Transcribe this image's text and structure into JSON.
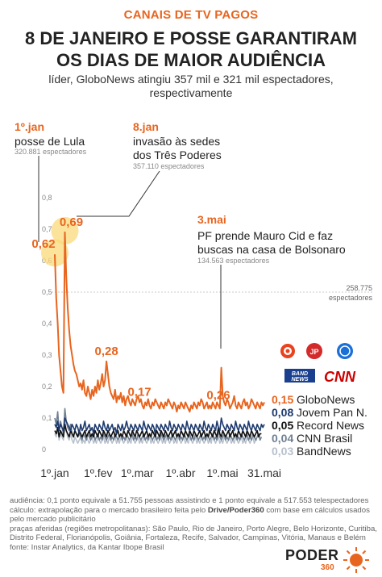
{
  "header": {
    "kicker": "CANAIS DE TV PAGOS",
    "title_line1": "8 DE JANEIRO E POSSE GARANTIRAM",
    "title_line2": "OS DIAS DE MAIOR AUDIÊNCIA",
    "subtitle_line1": "líder, GloboNews atingiu 357 mil e 321 mil espectadores,",
    "subtitle_line2": "respectivamente"
  },
  "annotations": {
    "posse": {
      "date": "1º.jan",
      "label": "posse de Lula",
      "viewers": "320.881 espectadores"
    },
    "jan8": {
      "date": "8.jan",
      "label_line1": "invasão às sedes",
      "label_line2": "dos Três Poderes",
      "viewers": "357.110 espectadores"
    },
    "mai3": {
      "date": "3.mai",
      "label_line1": "PF prende Mauro Cid e faz",
      "label_line2": "buscas na casa de Bolsonaro",
      "viewers": "134.563 espectadores"
    },
    "reference": {
      "value": "258.775",
      "unit": "espectadores"
    }
  },
  "chart_data": {
    "type": "line",
    "ylim": [
      0,
      0.8
    ],
    "yticks": [
      "0",
      "0,1",
      "0,2",
      "0,3",
      "0,4",
      "0,5",
      "0,6",
      "0,7",
      "0,8"
    ],
    "xtick_labels": [
      "1º.jan",
      "1º.fev",
      "1º.mar",
      "1º.abr",
      "1º.mai",
      "31.mai"
    ],
    "peak_labels": [
      "0,62",
      "0,69",
      "0,28",
      "0,17",
      "0,26"
    ],
    "reference_line_y": 0.5,
    "series": [
      {
        "name": "GloboNews",
        "last_value": "0,15",
        "color": "#e8651f",
        "values": [
          0.62,
          0.48,
          0.4,
          0.3,
          0.25,
          0.2,
          0.18,
          0.69,
          0.55,
          0.45,
          0.38,
          0.33,
          0.3,
          0.27,
          0.25,
          0.24,
          0.22,
          0.2,
          0.21,
          0.19,
          0.22,
          0.18,
          0.17,
          0.2,
          0.18,
          0.16,
          0.19,
          0.17,
          0.2,
          0.18,
          0.22,
          0.19,
          0.21,
          0.24,
          0.2,
          0.22,
          0.28,
          0.24,
          0.2,
          0.18,
          0.17,
          0.16,
          0.19,
          0.15,
          0.17,
          0.16,
          0.18,
          0.15,
          0.17,
          0.14,
          0.16,
          0.17,
          0.15,
          0.14,
          0.16,
          0.15,
          0.14,
          0.16,
          0.17,
          0.15,
          0.16,
          0.14,
          0.13,
          0.15,
          0.14,
          0.16,
          0.14,
          0.13,
          0.15,
          0.14,
          0.16,
          0.15,
          0.14,
          0.13,
          0.15,
          0.14,
          0.13,
          0.15,
          0.14,
          0.16,
          0.15,
          0.14,
          0.13,
          0.15,
          0.14,
          0.12,
          0.14,
          0.13,
          0.15,
          0.14,
          0.13,
          0.15,
          0.14,
          0.13,
          0.12,
          0.14,
          0.13,
          0.15,
          0.14,
          0.13,
          0.15,
          0.14,
          0.16,
          0.15,
          0.13,
          0.14,
          0.15,
          0.13,
          0.14,
          0.13,
          0.15,
          0.14,
          0.13,
          0.15,
          0.14,
          0.13,
          0.26,
          0.17,
          0.15,
          0.14,
          0.16,
          0.15,
          0.13,
          0.14,
          0.15,
          0.17,
          0.14,
          0.13,
          0.15,
          0.14,
          0.13,
          0.15,
          0.16,
          0.14,
          0.15,
          0.13,
          0.14,
          0.16,
          0.15,
          0.14,
          0.13,
          0.15,
          0.14,
          0.13,
          0.15,
          0.14,
          0.15
        ]
      },
      {
        "name": "Jovem Pan N.",
        "last_value": "0,08",
        "color": "#1e3a6e",
        "values": [
          0.08,
          0.07,
          0.09,
          0.06,
          0.08,
          0.07,
          0.06,
          0.1,
          0.09,
          0.08,
          0.07,
          0.06,
          0.08,
          0.07,
          0.06,
          0.08,
          0.07,
          0.05,
          0.08,
          0.06,
          0.07,
          0.09,
          0.06,
          0.07,
          0.08,
          0.06,
          0.07,
          0.05,
          0.08,
          0.07,
          0.06,
          0.08,
          0.07,
          0.06,
          0.09,
          0.07,
          0.06,
          0.08,
          0.06,
          0.07,
          0.08,
          0.06,
          0.07,
          0.05,
          0.08,
          0.07,
          0.06,
          0.08,
          0.06,
          0.07,
          0.09,
          0.07,
          0.06,
          0.08,
          0.07,
          0.06,
          0.08,
          0.07,
          0.06,
          0.08,
          0.07,
          0.06,
          0.09,
          0.07,
          0.06,
          0.08,
          0.07,
          0.06,
          0.08,
          0.07,
          0.05,
          0.08,
          0.07,
          0.06,
          0.08,
          0.07,
          0.06,
          0.08,
          0.07,
          0.06,
          0.09,
          0.07,
          0.06,
          0.08,
          0.07,
          0.06,
          0.08,
          0.07,
          0.06,
          0.08,
          0.07,
          0.06,
          0.09,
          0.07,
          0.06,
          0.08,
          0.07,
          0.06,
          0.08,
          0.07,
          0.06,
          0.08,
          0.07,
          0.06,
          0.09,
          0.07,
          0.06,
          0.08,
          0.07,
          0.06,
          0.08,
          0.07,
          0.06,
          0.09,
          0.07,
          0.06,
          0.1,
          0.08,
          0.07,
          0.06,
          0.08,
          0.07,
          0.06,
          0.08,
          0.07,
          0.06,
          0.09,
          0.07,
          0.06,
          0.08,
          0.07,
          0.06,
          0.08,
          0.07,
          0.06,
          0.09,
          0.07,
          0.06,
          0.08,
          0.07,
          0.06,
          0.08,
          0.07,
          0.06,
          0.08,
          0.07,
          0.08
        ]
      },
      {
        "name": "Record News",
        "last_value": "0,05",
        "color": "#111111",
        "values": [
          0.06,
          0.05,
          0.07,
          0.04,
          0.06,
          0.05,
          0.04,
          0.08,
          0.06,
          0.05,
          0.04,
          0.06,
          0.05,
          0.04,
          0.06,
          0.05,
          0.04,
          0.06,
          0.05,
          0.04,
          0.05,
          0.06,
          0.04,
          0.05,
          0.06,
          0.04,
          0.05,
          0.04,
          0.06,
          0.05,
          0.04,
          0.06,
          0.05,
          0.04,
          0.06,
          0.05,
          0.04,
          0.06,
          0.05,
          0.04,
          0.05,
          0.06,
          0.04,
          0.05,
          0.06,
          0.04,
          0.05,
          0.04,
          0.06,
          0.05,
          0.04,
          0.06,
          0.05,
          0.04,
          0.06,
          0.05,
          0.04,
          0.06,
          0.05,
          0.04,
          0.05,
          0.06,
          0.04,
          0.05,
          0.06,
          0.04,
          0.05,
          0.04,
          0.06,
          0.05,
          0.04,
          0.06,
          0.05,
          0.04,
          0.06,
          0.05,
          0.04,
          0.06,
          0.05,
          0.04,
          0.05,
          0.06,
          0.04,
          0.05,
          0.06,
          0.04,
          0.05,
          0.04,
          0.06,
          0.05,
          0.04,
          0.06,
          0.05,
          0.04,
          0.06,
          0.05,
          0.04,
          0.06,
          0.05,
          0.04,
          0.05,
          0.06,
          0.04,
          0.05,
          0.06,
          0.04,
          0.05,
          0.04,
          0.06,
          0.05,
          0.04,
          0.06,
          0.05,
          0.04,
          0.07,
          0.05,
          0.04,
          0.06,
          0.05,
          0.04,
          0.05,
          0.06,
          0.04,
          0.05,
          0.06,
          0.04,
          0.05,
          0.04,
          0.06,
          0.05,
          0.04,
          0.06,
          0.05,
          0.04,
          0.06,
          0.05,
          0.04,
          0.06,
          0.05,
          0.04,
          0.05,
          0.06,
          0.04,
          0.05,
          0.05
        ]
      },
      {
        "name": "CNN Brasil",
        "last_value": "0,04",
        "color": "#6f7f93",
        "values": [
          0.1,
          0.08,
          0.12,
          0.06,
          0.09,
          0.07,
          0.05,
          0.13,
          0.09,
          0.07,
          0.06,
          0.08,
          0.05,
          0.04,
          0.06,
          0.05,
          0.04,
          0.05,
          0.04,
          0.03,
          0.05,
          0.04,
          0.03,
          0.05,
          0.04,
          0.03,
          0.04,
          0.05,
          0.03,
          0.04,
          0.05,
          0.03,
          0.04,
          0.03,
          0.05,
          0.04,
          0.03,
          0.04,
          0.05,
          0.03,
          0.04,
          0.03,
          0.05,
          0.04,
          0.03,
          0.04,
          0.05,
          0.03,
          0.04,
          0.03,
          0.05,
          0.04,
          0.03,
          0.04,
          0.05,
          0.03,
          0.04,
          0.03,
          0.05,
          0.04,
          0.03,
          0.04,
          0.05,
          0.03,
          0.04,
          0.03,
          0.05,
          0.04,
          0.03,
          0.04,
          0.05,
          0.03,
          0.04,
          0.03,
          0.05,
          0.04,
          0.03,
          0.04,
          0.05,
          0.03,
          0.04,
          0.03,
          0.05,
          0.04,
          0.03,
          0.04,
          0.05,
          0.03,
          0.04,
          0.03,
          0.05,
          0.04,
          0.03,
          0.04,
          0.05,
          0.03,
          0.04,
          0.03,
          0.05,
          0.04,
          0.03,
          0.04,
          0.05,
          0.03,
          0.04,
          0.03,
          0.05,
          0.04,
          0.03,
          0.04,
          0.05,
          0.03,
          0.04,
          0.03,
          0.06,
          0.04,
          0.03,
          0.04,
          0.05,
          0.03,
          0.04,
          0.03,
          0.05,
          0.04,
          0.03,
          0.04,
          0.05,
          0.03,
          0.04,
          0.03,
          0.05,
          0.04,
          0.03,
          0.04,
          0.05,
          0.03,
          0.04,
          0.03,
          0.05,
          0.04,
          0.03,
          0.04,
          0.05,
          0.03,
          0.04
        ]
      },
      {
        "name": "BandNews",
        "last_value": "0,03",
        "color": "#b8c1cc",
        "values": [
          0.05,
          0.04,
          0.07,
          0.03,
          0.05,
          0.04,
          0.03,
          0.09,
          0.06,
          0.04,
          0.03,
          0.05,
          0.03,
          0.02,
          0.04,
          0.03,
          0.02,
          0.03,
          0.04,
          0.02,
          0.03,
          0.02,
          0.04,
          0.03,
          0.02,
          0.03,
          0.04,
          0.02,
          0.03,
          0.02,
          0.04,
          0.03,
          0.02,
          0.03,
          0.04,
          0.02,
          0.03,
          0.02,
          0.04,
          0.03,
          0.02,
          0.03,
          0.04,
          0.02,
          0.03,
          0.02,
          0.04,
          0.03,
          0.02,
          0.03,
          0.04,
          0.02,
          0.03,
          0.02,
          0.04,
          0.03,
          0.02,
          0.03,
          0.04,
          0.02,
          0.03,
          0.02,
          0.04,
          0.03,
          0.02,
          0.03,
          0.04,
          0.02,
          0.03,
          0.02,
          0.04,
          0.03,
          0.02,
          0.03,
          0.04,
          0.02,
          0.03,
          0.02,
          0.04,
          0.03,
          0.02,
          0.03,
          0.04,
          0.02,
          0.03,
          0.02,
          0.04,
          0.03,
          0.02,
          0.03,
          0.04,
          0.02,
          0.03,
          0.02,
          0.04,
          0.03,
          0.02,
          0.03,
          0.04,
          0.02,
          0.03,
          0.02,
          0.04,
          0.03,
          0.02,
          0.03,
          0.04,
          0.02,
          0.03,
          0.02,
          0.05,
          0.03,
          0.02,
          0.03,
          0.04,
          0.02,
          0.03,
          0.02,
          0.04,
          0.03,
          0.02,
          0.03,
          0.04,
          0.02,
          0.03,
          0.02,
          0.04,
          0.03,
          0.02,
          0.03,
          0.04,
          0.02,
          0.03,
          0.02,
          0.04,
          0.03,
          0.02,
          0.03,
          0.04,
          0.02,
          0.03,
          0.03
        ]
      }
    ]
  },
  "logos": {
    "row1": [
      "globo-logo",
      "jovem-pan-logo",
      "record-logo"
    ],
    "row2": [
      "band-news-logo",
      "cnn-logo"
    ],
    "band_text_top": "BAND",
    "band_text_bottom": "NEWS",
    "cnn_text": "CNN"
  },
  "footer": {
    "line1": "audiência: 0,1 ponto equivale a 51.755 pessoas assistindo e 1 ponto equivale a 517.553 telespectadores",
    "line2_a": "cálculo: extrapolação para o mercado brasileiro feita pelo ",
    "line2_b": "Drive/Poder360",
    "line2_c": " com base em cálculos usados",
    "line3": "pelo mercado publicitário",
    "line4": "praças aferidas (regiões metropolitanas): São Paulo, Rio de Janeiro, Porto Alegre, Belo Horizonte, Curitiba,",
    "line5": "Distrito Federal, Florianópolis, Goiânia, Fortaleza, Recife, Salvador, Campinas, Vitória, Manaus e Belém",
    "line6": "fonte: Instar Analytics, da Kantar Ibope Brasil"
  },
  "brand": {
    "name": "PODER",
    "sub": "360"
  }
}
